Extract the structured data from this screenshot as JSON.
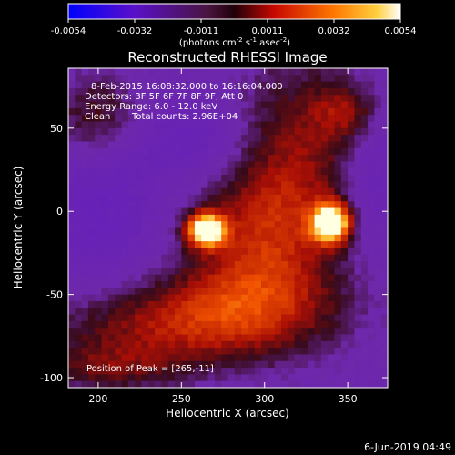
{
  "colorbar": {
    "ticks": [
      "-0.0054",
      "-0.0032",
      "-0.0011",
      "0.0011",
      "0.0032",
      "0.0054"
    ],
    "units_prefix": "(photons cm",
    "units_exp1": "-2",
    "units_mid1": " s",
    "units_exp2": "-1",
    "units_mid2": " asec",
    "units_exp3": "-2",
    "units_suffix": ")"
  },
  "annotations": {
    "time_range": "8-Feb-2015 16:08:32.000 to 16:16:04.000",
    "detectors": "Detectors: 3F 5F 6F 7F 8F 9F, Att 0",
    "energy": "Energy Range: 6.0 - 12.0 keV",
    "clean_label": "Clean",
    "total_counts": "Total counts: 2.96E+04",
    "peak": "Position of Peak = [265,-11]"
  },
  "footer": {
    "date": "6-Jun-2019 04:49"
  },
  "chart_data": {
    "type": "heatmap",
    "title": "Reconstructed RHESSI Image",
    "xlabel": "Heliocentric X (arcsec)",
    "ylabel": "Heliocentric Y (arcsec)",
    "xlim": [
      182,
      374
    ],
    "ylim": [
      -106,
      86
    ],
    "xticks": [
      200,
      250,
      300,
      350
    ],
    "yticks": [
      -100,
      -50,
      0,
      50
    ],
    "value_range": [
      -0.0054,
      0.0054
    ],
    "peaks": [
      {
        "x": 265,
        "y": -11,
        "value": 0.0054
      },
      {
        "x": 340,
        "y": -7,
        "value": 0.0054
      }
    ],
    "colors": {
      "negative": "#6a20b8",
      "zero": "#3a0a14",
      "mid": "#c81800",
      "high": "#ff9a00",
      "max": "#ffffd8"
    }
  }
}
